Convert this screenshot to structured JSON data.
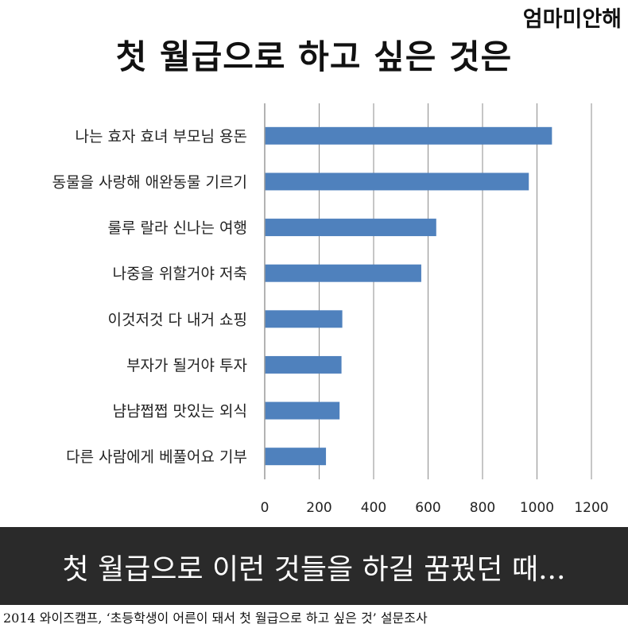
{
  "brand": "엄마미안해",
  "title": "첫 월급으로 하고 싶은 것은",
  "banner": "첫 월급으로 이런 것들을 하길 꿈꿨던 때...",
  "source": "2014 와이즈캠프, ‘초등학생이 어른이 돼서 첫 월급으로 하고 싶은 것’ 설문조사",
  "chart_data": {
    "type": "bar",
    "orientation": "horizontal",
    "title": "첫 월급으로 하고 싶은 것은",
    "categories": [
      "나는 효자 효녀 부모님 용돈",
      "동물을 사랑해 애완동물 기르기",
      "룰루 랄라 신나는 여행",
      "나중을 위할거야 저축",
      "이것저것 다 내거 쇼핑",
      "부자가 될거야 투자",
      "냠냠쩝쩝 맛있는 외식",
      "다른 사람에게 베풀어요 기부"
    ],
    "values": [
      1055,
      970,
      630,
      575,
      285,
      282,
      275,
      225
    ],
    "xlim": [
      0,
      1200
    ],
    "xticks": [
      0,
      200,
      400,
      600,
      800,
      1000,
      1200
    ],
    "grid": "vertical",
    "bar_color": "#4f81bd"
  }
}
